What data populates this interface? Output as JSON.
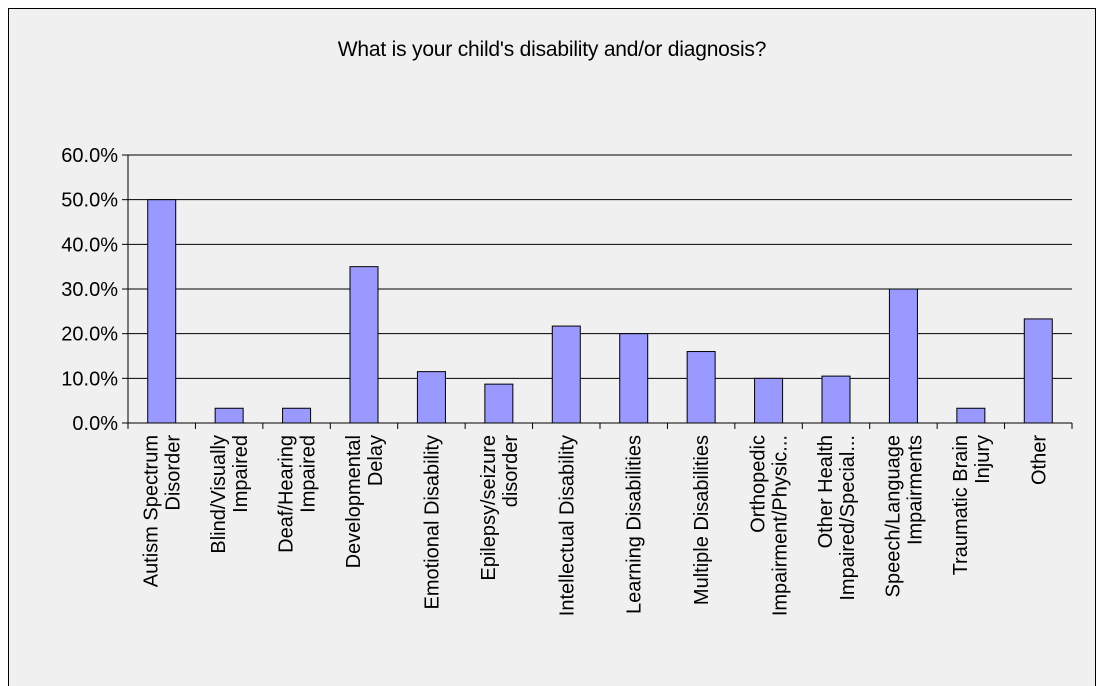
{
  "chart_data": {
    "type": "bar",
    "title": "What is your child's disability and/or diagnosis?",
    "categories": [
      [
        "Autism Spectrum",
        "Disorder"
      ],
      [
        "Blind/Visually",
        "Impaired"
      ],
      [
        "Deaf/Hearing",
        "Impaired"
      ],
      [
        "Developmental",
        "Delay"
      ],
      [
        "Emotional Disability"
      ],
      [
        "Epilepsy/seizure",
        "disorder"
      ],
      [
        "Intellectual Disability"
      ],
      [
        "Learning Disabilities"
      ],
      [
        "Multiple Disabilities"
      ],
      [
        "Orthopedic",
        "Impairment/Physic..."
      ],
      [
        "Other Health",
        "Impaired/Special..."
      ],
      [
        "Speech/Language",
        "Impairments"
      ],
      [
        "Traumatic Brain",
        "Injury"
      ],
      [
        "Other"
      ]
    ],
    "values": [
      50.0,
      3.3,
      3.3,
      35.0,
      11.5,
      8.7,
      21.7,
      20.0,
      16.0,
      10.0,
      10.5,
      30.0,
      3.3,
      23.3
    ],
    "y_ticks": [
      "0.0%",
      "10.0%",
      "20.0%",
      "30.0%",
      "40.0%",
      "50.0%",
      "60.0%"
    ],
    "ylim": [
      0,
      60
    ],
    "grid": true,
    "legend": "none",
    "bar_color": "#9999ff",
    "bar_edge_color": "#000000"
  }
}
